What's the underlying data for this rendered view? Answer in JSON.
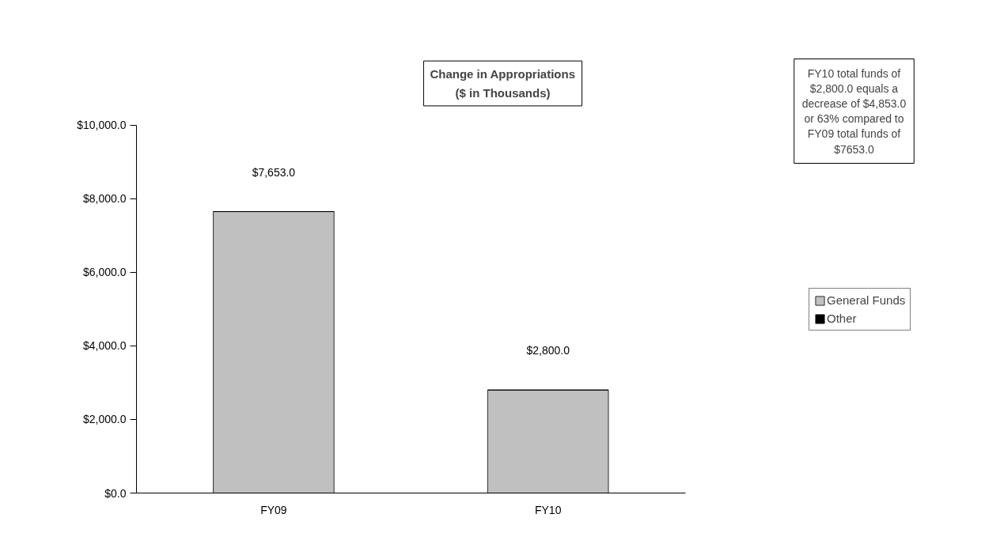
{
  "chart_data": {
    "type": "bar",
    "title": "Change in Appropriations",
    "subtitle": "($ in Thousands)",
    "categories": [
      "FY09",
      "FY10"
    ],
    "series": [
      {
        "name": "General Funds",
        "color": "#c0c0c0",
        "values": [
          7653.0,
          2800.0
        ],
        "value_labels": [
          "$7,653.0",
          "$2,800.0"
        ]
      },
      {
        "name": "Other",
        "color": "#000000",
        "values": [
          0,
          0
        ]
      }
    ],
    "stacked": true,
    "ylim": [
      0,
      10000
    ],
    "yticks": [
      {
        "value": 0,
        "label": "$0.0"
      },
      {
        "value": 2000,
        "label": "$2,000.0"
      },
      {
        "value": 4000,
        "label": "$4,000.0"
      },
      {
        "value": 6000,
        "label": "$6,000.0"
      },
      {
        "value": 8000,
        "label": "$8,000.0"
      },
      {
        "value": 10000,
        "label": "$10,000.0"
      }
    ],
    "annotations": [
      "FY10 total funds of\n$2,800.0 equals a\ndecrease of $4,853.0\nor 63% compared to\nFY09 total funds of\n$7653.0"
    ],
    "grid": false,
    "legend": "right"
  }
}
